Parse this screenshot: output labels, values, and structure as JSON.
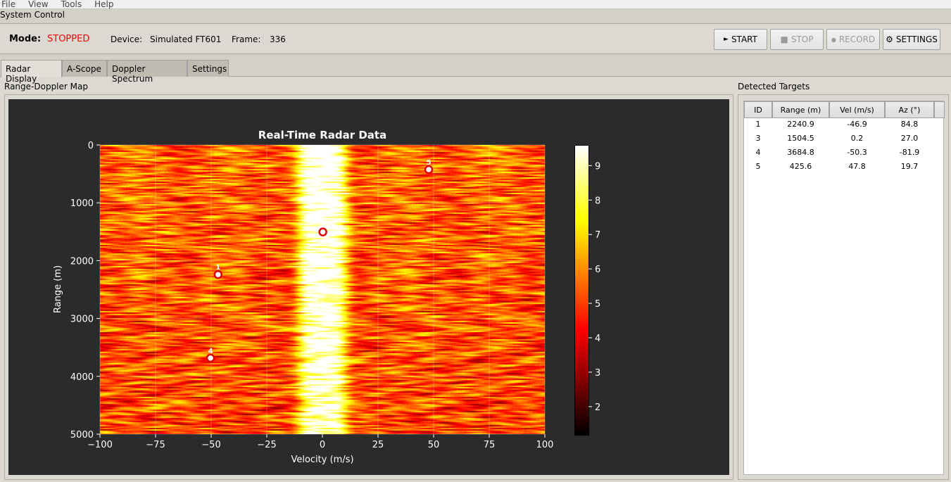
{
  "menu": [
    "File",
    "View",
    "Tools",
    "Help"
  ],
  "section_title": "System Control",
  "status": {
    "mode_label": "Mode:",
    "mode_value": "STOPPED",
    "mode_color": "#ff0000",
    "device_label": "Device:",
    "device_value": "Simulated FT601",
    "frame_label": "Frame:",
    "frame_value": "336"
  },
  "buttons": {
    "start": "START",
    "stop": "STOP",
    "record": "RECORD",
    "settings": "SETTINGS",
    "start_icon": "►",
    "stop_icon": "■",
    "record_icon": "●",
    "settings_icon": "⚙"
  },
  "tabs": [
    "Radar Display",
    "A-Scope",
    "Doppler Spectrum",
    "Settings"
  ],
  "map_group": "Range-Doppler Map",
  "targets_group": "Detected Targets",
  "table": {
    "columns": [
      "ID",
      "Range (m)",
      "Vel (m/s)",
      "Az (°)"
    ],
    "rows": [
      [
        "1",
        "2240.9",
        "-46.9",
        "84.8"
      ],
      [
        "3",
        "1504.5",
        "0.2",
        "27.0"
      ],
      [
        "4",
        "3684.8",
        "-50.3",
        "-81.9"
      ],
      [
        "5",
        "425.6",
        "47.8",
        "19.7"
      ]
    ]
  },
  "chart_data": {
    "type": "heatmap",
    "title": "Real-Time Radar Data",
    "xlabel": "Velocity (m/s)",
    "ylabel": "Range (m)",
    "xlim": [
      -100,
      100
    ],
    "ylim": [
      5000,
      0
    ],
    "xticks": [
      -100,
      -75,
      -50,
      -25,
      0,
      25,
      50,
      75,
      100
    ],
    "xtick_labels": [
      "−100",
      "−75",
      "−50",
      "−25",
      "0",
      "25",
      "50",
      "75",
      "100"
    ],
    "yticks": [
      0,
      1000,
      2000,
      3000,
      4000,
      5000
    ],
    "colorbar": {
      "range": [
        1.2,
        9.6
      ],
      "ticks": [
        2,
        3,
        4,
        5,
        6,
        7,
        8,
        9
      ],
      "colormap": "hot"
    },
    "grid": true,
    "targets": [
      {
        "id": "1",
        "velocity": -46.9,
        "range": 2240.9
      },
      {
        "id": "3",
        "velocity": 0.2,
        "range": 1504.5
      },
      {
        "id": "4",
        "velocity": -50.3,
        "range": 3684.8
      },
      {
        "id": "5",
        "velocity": 47.8,
        "range": 425.6
      }
    ]
  }
}
